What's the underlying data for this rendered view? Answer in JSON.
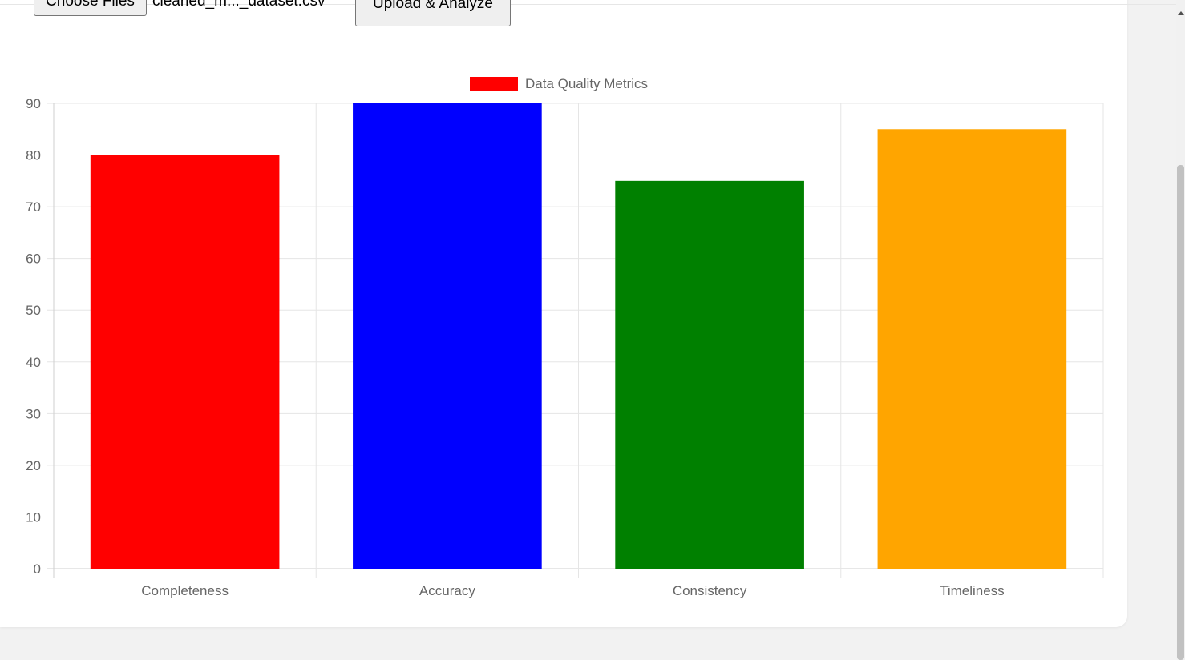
{
  "uploader": {
    "choose_label": "Choose Files",
    "file_name": "cleaned_m..._dataset.csv",
    "upload_label": "Upload & Analyze"
  },
  "chart_data": {
    "type": "bar",
    "categories": [
      "Completeness",
      "Accuracy",
      "Consistency",
      "Timeliness"
    ],
    "series": [
      {
        "name": "Data Quality Metrics",
        "values": [
          80,
          90,
          75,
          85
        ],
        "colors": [
          "#ff0000",
          "#0000ff",
          "#008000",
          "#ffa500"
        ]
      }
    ],
    "legend_color": "#ff0000",
    "ylim": [
      0,
      90
    ],
    "yticks": [
      0,
      10,
      20,
      30,
      40,
      50,
      60,
      70,
      80,
      90
    ],
    "grid": true,
    "legend_position": "top-center"
  }
}
